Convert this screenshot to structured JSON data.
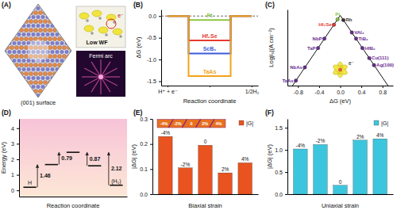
{
  "panel_labels": [
    "(A)",
    "(B)",
    "(C)",
    "(D)",
    "(E)",
    "(F)"
  ],
  "panel_a": {
    "caption": "(001) surface",
    "top_inset_label": "Low WF",
    "electron": "e⁻",
    "bottom_inset_label": "Fermi arc"
  },
  "chart_data": [
    {
      "type": "step",
      "x_label": "Reaction coordinate",
      "y_label": "ΔG (eV)",
      "categories": [
        "H⁺ + e⁻",
        null,
        "1/2H₂"
      ],
      "series": [
        {
          "name": "Pt",
          "color": "#8cc63f",
          "values": [
            0,
            -0.09,
            0
          ]
        },
        {
          "name": "Hf₂Se",
          "color": "#e53a2f",
          "values": [
            0,
            -0.56,
            0
          ]
        },
        {
          "name": "ScB₂",
          "color": "#3d5bd9",
          "values": [
            0,
            -0.86,
            0
          ]
        },
        {
          "name": "TaAs",
          "color": "#f2a31b",
          "values": [
            0,
            -1.38,
            0
          ]
        }
      ],
      "reference_line": {
        "value": 0,
        "line_style": "dashed"
      },
      "ylim": [
        -1.6,
        0.15
      ],
      "yticks": [
        {
          "value": 0,
          "label": "0.0"
        },
        -0.5,
        {
          "value": -1,
          "label": "-1.0"
        },
        -1.5
      ]
    },
    {
      "type": "scatter",
      "x_label": "ΔG (eV)",
      "y_label": "Log|i₀|(A cm⁻²)",
      "labels": [
        "TaAs",
        "NbAs",
        "TaP",
        "NbP",
        "Hf₂Se",
        "Pt",
        "Rh",
        "VAl₃",
        "TiB₂",
        "HfB₂",
        "Cu(111)",
        "Ag(100)"
      ],
      "x": [
        -0.84,
        -0.67,
        -0.42,
        -0.3,
        -0.12,
        -0.05,
        0.06,
        0.22,
        0.3,
        0.42,
        0.55,
        0.64
      ],
      "values": [
        -8.41,
        -6.85,
        -4.56,
        -3.45,
        -1.8,
        -1.16,
        -1.25,
        -2.72,
        -3.45,
        -4.56,
        -5.75,
        -6.58
      ],
      "colors": [
        "#6a2c91",
        "#6a2c91",
        "#6a2c91",
        "#6a2c91",
        "#e53a2f",
        "#8cc63f",
        "#333333",
        "#6a2c91",
        "#6a2c91",
        "#6a2c91",
        "#6a2c91",
        "#6a2c91"
      ],
      "marker": "circle",
      "volcano": {
        "x": [
          -0.92,
          0,
          0.92
        ],
        "values": [
          -9.15,
          -0.7,
          -9.15
        ]
      },
      "xlim": [
        -1,
        1
      ],
      "xticks": [
        -0.8,
        -0.4,
        {
          "value": 0,
          "label": "0.0"
        },
        0.4,
        0.8
      ],
      "ylim": [
        -9,
        0
      ],
      "tick_labels": "x",
      "inset_text": "e⁻"
    },
    {
      "type": "energy_diagram",
      "x_label": "Reaction coordinate",
      "y_label": "Energy (eV)",
      "levels": [
        {
          "label": "H",
          "value": 0.2
        },
        {
          "value": 1.66
        },
        {
          "value": 2.45
        },
        {
          "value": 1.58
        },
        {
          "label": "(H₂)",
          "value": 0.33
        }
      ],
      "barriers": [
        {
          "value": 1.46,
          "from": 0,
          "to": 1
        },
        {
          "value": 0.79,
          "from": 1,
          "to": 2
        },
        {
          "value": 0.87,
          "from": 3,
          "to": 2
        },
        {
          "value": 2.12,
          "from": 4,
          "to": 2
        }
      ],
      "ylim": [
        -0.4,
        4.6
      ],
      "yticks": [
        0,
        1,
        2,
        3,
        4
      ],
      "tick_labels": "y"
    },
    {
      "type": "bar",
      "x_label": "Biaxial strain",
      "y_label": "|ΔG| (eV)",
      "categories": [
        "-4%",
        "-2%",
        "0",
        "2%",
        "4%"
      ],
      "series": [
        {
          "name": "|G|",
          "color": "#e8531f",
          "values": [
            0.23,
            0.105,
            0.195,
            0.085,
            0.125
          ]
        }
      ],
      "ylim": [
        0,
        0.3
      ],
      "yticks": [
        {
          "value": 0,
          "label": "0.0"
        },
        0.1,
        0.2,
        0.3
      ],
      "legend": "upper-right",
      "tick_labels": "y",
      "inset_labels": [
        "-4%",
        "-2%",
        "0",
        "2%",
        "4%"
      ]
    },
    {
      "type": "bar",
      "x_label": "Uniaxial strain",
      "y_label": "|ΔG| (eV)",
      "categories": [
        "-4%",
        "-2%",
        "0",
        "2%",
        "4%"
      ],
      "series": [
        {
          "name": "|G|",
          "color": "#3cc6dd",
          "values": [
            1.02,
            1.12,
            0.2,
            1.22,
            1.25
          ]
        }
      ],
      "ylim": [
        0,
        1.7
      ],
      "yticks": [
        {
          "value": 0,
          "label": "0.0"
        },
        0.5,
        {
          "value": 1,
          "label": "1.0"
        },
        1.5
      ],
      "legend": "upper-right",
      "tick_labels": "y"
    }
  ]
}
